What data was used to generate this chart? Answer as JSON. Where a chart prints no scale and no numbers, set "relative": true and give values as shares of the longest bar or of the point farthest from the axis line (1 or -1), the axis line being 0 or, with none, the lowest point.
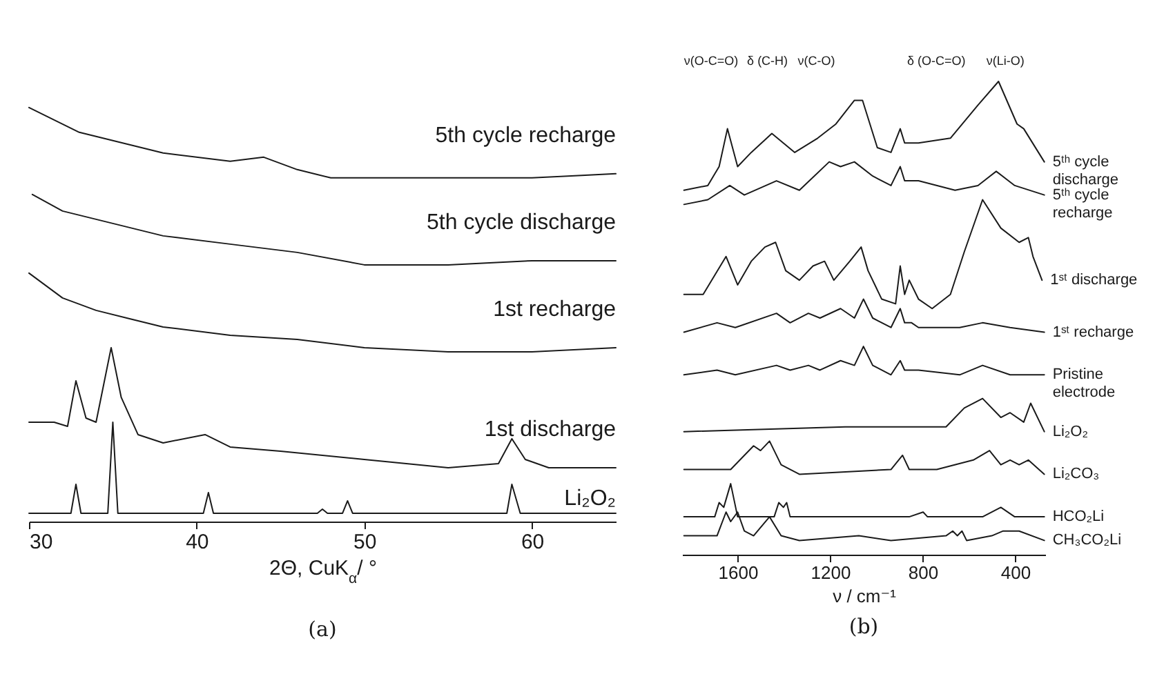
{
  "chart_data": [
    {
      "type": "line",
      "title": "(a)",
      "xlabel": "2Θ, CuK$_{α}$/ °",
      "xlim": [
        30,
        65
      ],
      "xticks": [
        30,
        40,
        50,
        60
      ],
      "relative": true,
      "series": [
        {
          "name": "5th cycle recharge",
          "color": "#1a1a1a",
          "x": [
            30,
            31,
            33,
            35,
            38,
            42,
            44,
            46,
            48,
            50,
            55,
            60,
            65
          ],
          "values": [
            1.0,
            0.98,
            0.94,
            0.92,
            0.89,
            0.87,
            0.88,
            0.85,
            0.83,
            0.83,
            0.83,
            0.83,
            0.84
          ]
        },
        {
          "name": "5th cycle discharge",
          "color": "#1a1a1a",
          "x": [
            30.2,
            32,
            35,
            38,
            42,
            46,
            50,
            55,
            60,
            65
          ],
          "values": [
            0.79,
            0.75,
            0.72,
            0.69,
            0.67,
            0.65,
            0.62,
            0.62,
            0.63,
            0.63
          ]
        },
        {
          "name": "1st recharge",
          "color": "#1a1a1a",
          "x": [
            30,
            31,
            32,
            34,
            36,
            38,
            42,
            46,
            50,
            55,
            60,
            65
          ],
          "values": [
            0.6,
            0.57,
            0.54,
            0.51,
            0.49,
            0.47,
            0.45,
            0.44,
            0.42,
            0.41,
            0.41,
            0.42
          ]
        },
        {
          "name": "1st discharge",
          "color": "#1a1a1a",
          "x": [
            30,
            31.5,
            32.3,
            32.8,
            33.4,
            34,
            34.9,
            35.5,
            36.5,
            38,
            40.5,
            42,
            45,
            50,
            55,
            58,
            58.8,
            59.6,
            61,
            65
          ],
          "values": [
            0.24,
            0.24,
            0.23,
            0.34,
            0.25,
            0.24,
            0.42,
            0.3,
            0.21,
            0.19,
            0.21,
            0.18,
            0.17,
            0.15,
            0.13,
            0.14,
            0.2,
            0.15,
            0.13,
            0.13
          ]
        },
        {
          "name": "Li₂O₂",
          "color": "#1a1a1a",
          "x": [
            30,
            32.5,
            32.8,
            33.1,
            34.7,
            35,
            35.3,
            40.4,
            40.7,
            41,
            47.2,
            47.5,
            47.8,
            48.7,
            49,
            49.3,
            58.5,
            58.8,
            59.3,
            63.7,
            64,
            64.3,
            65
          ],
          "values": [
            0.02,
            0.02,
            0.09,
            0.02,
            0.02,
            0.24,
            0.02,
            0.02,
            0.07,
            0.02,
            0.02,
            0.03,
            0.02,
            0.02,
            0.05,
            0.02,
            0.02,
            0.09,
            0.02,
            0.02,
            0.02,
            0.02,
            0.02
          ]
        }
      ]
    },
    {
      "type": "line",
      "title": "(b)",
      "xlabel": "ν / cm⁻¹",
      "xlim": [
        1840,
        270
      ],
      "xticks": [
        1600,
        1200,
        800,
        400
      ],
      "relative": true,
      "annotations": [
        "ν(O-C=O)",
        "δ (C-H)",
        "ν(C-O)",
        "δ (O-C=O)",
        "ν(Li-O)"
      ],
      "series": [
        {
          "name": "5ᵗʰ cycle discharge",
          "color": "#1a1a1a",
          "x": [
            1832,
            1729,
            1680,
            1644,
            1600,
            1541,
            1452,
            1353,
            1254,
            1175,
            1095,
            1060,
            996,
            937,
            897,
            878,
            818,
            680,
            561,
            472,
            392,
            363,
            274
          ],
          "values": [
            0.77,
            0.78,
            0.82,
            0.9,
            0.82,
            0.85,
            0.89,
            0.85,
            0.88,
            0.91,
            0.96,
            0.96,
            0.86,
            0.85,
            0.9,
            0.87,
            0.87,
            0.88,
            0.95,
            1.0,
            0.91,
            0.9,
            0.83
          ]
        },
        {
          "name": "5ᵗʰ cycle recharge",
          "color": "#1a1a1a",
          "x": [
            1832,
            1729,
            1634,
            1571,
            1432,
            1333,
            1204,
            1155,
            1095,
            1016,
            937,
            897,
            878,
            818,
            660,
            561,
            482,
            402,
            274
          ],
          "values": [
            0.74,
            0.75,
            0.78,
            0.76,
            0.79,
            0.77,
            0.83,
            0.82,
            0.83,
            0.8,
            0.78,
            0.82,
            0.79,
            0.79,
            0.77,
            0.78,
            0.81,
            0.78,
            0.76
          ]
        },
        {
          "name": "1ˢᵗ discharge",
          "color": "#1a1a1a",
          "x": [
            1832,
            1749,
            1650,
            1600,
            1541,
            1482,
            1436,
            1392,
            1333,
            1274,
            1224,
            1184,
            1115,
            1066,
            1036,
            977,
            917,
            897,
            878,
            858,
            818,
            759,
            680,
            620,
            541,
            462,
            383,
            343,
            323,
            284
          ],
          "values": [
            0.55,
            0.55,
            0.63,
            0.57,
            0.62,
            0.65,
            0.66,
            0.6,
            0.58,
            0.61,
            0.62,
            0.58,
            0.62,
            0.65,
            0.6,
            0.54,
            0.53,
            0.61,
            0.55,
            0.58,
            0.54,
            0.52,
            0.55,
            0.64,
            0.75,
            0.69,
            0.66,
            0.67,
            0.63,
            0.58
          ]
        },
        {
          "name": "1ˢᵗ recharge",
          "color": "#1a1a1a",
          "x": [
            1832,
            1689,
            1610,
            1432,
            1373,
            1294,
            1244,
            1155,
            1095,
            1056,
            1016,
            937,
            897,
            878,
            848,
            818,
            640,
            541,
            422,
            274
          ],
          "values": [
            0.47,
            0.49,
            0.48,
            0.51,
            0.49,
            0.51,
            0.5,
            0.52,
            0.5,
            0.54,
            0.5,
            0.48,
            0.52,
            0.49,
            0.49,
            0.48,
            0.48,
            0.49,
            0.48,
            0.47
          ]
        },
        {
          "name": "Pristine electrode",
          "color": "#1a1a1a",
          "x": [
            1832,
            1689,
            1610,
            1432,
            1373,
            1294,
            1244,
            1155,
            1095,
            1056,
            1016,
            937,
            897,
            878,
            818,
            640,
            541,
            422,
            274
          ],
          "values": [
            0.38,
            0.39,
            0.38,
            0.4,
            0.39,
            0.4,
            0.39,
            0.41,
            0.4,
            0.44,
            0.4,
            0.38,
            0.41,
            0.39,
            0.39,
            0.38,
            0.4,
            0.38,
            0.38
          ]
        },
        {
          "name": "Li₂O₂",
          "color": "#1a1a1a",
          "x": [
            1832,
            1135,
            699,
            620,
            541,
            462,
            422,
            363,
            333,
            274
          ],
          "values": [
            0.26,
            0.27,
            0.27,
            0.31,
            0.33,
            0.29,
            0.3,
            0.28,
            0.32,
            0.26
          ]
        },
        {
          "name": "Li₂CO₃",
          "color": "#1a1a1a",
          "x": [
            1832,
            1630,
            1531,
            1501,
            1462,
            1412,
            1333,
            937,
            887,
            858,
            739,
            581,
            511,
            462,
            422,
            383,
            343,
            274
          ],
          "values": [
            0.18,
            0.18,
            0.23,
            0.22,
            0.24,
            0.19,
            0.17,
            0.18,
            0.21,
            0.18,
            0.18,
            0.2,
            0.22,
            0.19,
            0.2,
            0.19,
            0.2,
            0.17
          ]
        },
        {
          "name": "HCO₂Li",
          "color": "#1a1a1a",
          "x": [
            1832,
            1699,
            1680,
            1660,
            1630,
            1600,
            1442,
            1422,
            1402,
            1388,
            1373,
            858,
            798,
            779,
            541,
            462,
            402,
            274
          ],
          "values": [
            0.08,
            0.08,
            0.11,
            0.1,
            0.15,
            0.08,
            0.08,
            0.11,
            0.1,
            0.11,
            0.08,
            0.08,
            0.09,
            0.08,
            0.08,
            0.1,
            0.08,
            0.08
          ]
        },
        {
          "name": "CH₃CO₂Li",
          "color": "#1a1a1a",
          "x": [
            1832,
            1689,
            1650,
            1630,
            1600,
            1571,
            1531,
            1462,
            1412,
            1333,
            1076,
            937,
            699,
            670,
            650,
            630,
            610,
            501,
            452,
            383,
            274
          ],
          "values": [
            0.04,
            0.04,
            0.09,
            0.07,
            0.09,
            0.05,
            0.04,
            0.08,
            0.04,
            0.03,
            0.04,
            0.03,
            0.04,
            0.05,
            0.04,
            0.05,
            0.03,
            0.04,
            0.05,
            0.05,
            0.03
          ]
        }
      ]
    }
  ]
}
